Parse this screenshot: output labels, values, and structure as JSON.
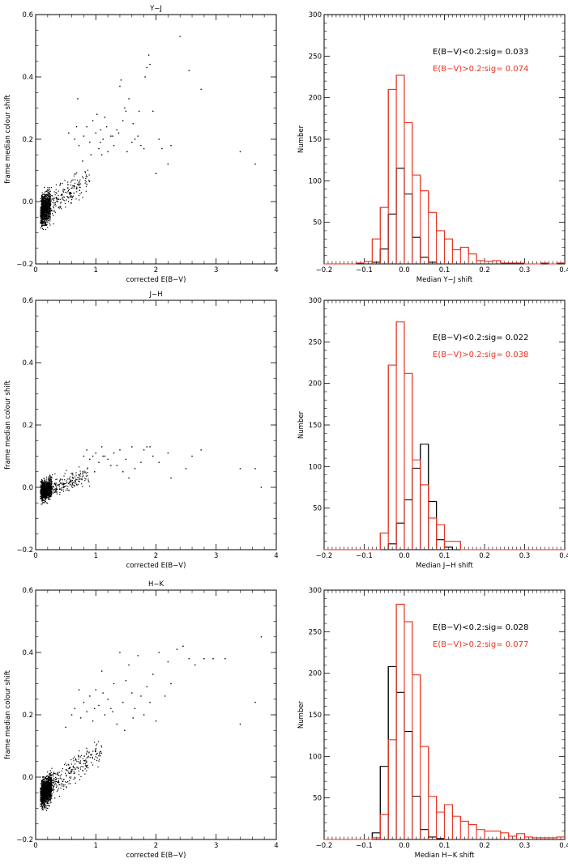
{
  "chart_data": [
    {
      "type": "scatter",
      "title": "Y−J",
      "xlabel": "corrected E(B−V)",
      "ylabel": "frame median colour shift",
      "xlim": [
        0,
        4
      ],
      "ylim": [
        -0.2,
        0.6
      ],
      "xticks": [
        0,
        1,
        2,
        3,
        4
      ],
      "yticks": [
        -0.2,
        0.0,
        0.2,
        0.4,
        0.6
      ],
      "ytick_labels": [
        "−0.2",
        "0.0",
        "0.2",
        "0.4",
        "0.6"
      ],
      "point_color": "#000000",
      "cloud": {
        "n": 1150,
        "x_min": 0.08,
        "x_max": 0.9,
        "x_peak": 0.2,
        "slope": 0.13,
        "intercept": -0.045,
        "scatter": 0.033,
        "seed": 11
      },
      "x": [
        0.55,
        0.65,
        0.7,
        0.72,
        0.8,
        0.85,
        0.9,
        0.95,
        1.0,
        1.02,
        1.05,
        1.08,
        1.1,
        1.12,
        1.15,
        1.2,
        1.25,
        1.3,
        1.35,
        1.4,
        1.42,
        1.45,
        1.48,
        1.5,
        1.55,
        1.6,
        1.65,
        1.7,
        1.72,
        1.75,
        1.8,
        1.82,
        1.85,
        1.88,
        1.9,
        1.95,
        2.0,
        2.05,
        2.1,
        2.2,
        2.25,
        2.4,
        2.55,
        2.75,
        3.4,
        3.65,
        1.18,
        1.28,
        1.38,
        1.52,
        1.62,
        0.78,
        0.68,
        1.08,
        0.92
      ],
      "y": [
        0.22,
        0.2,
        0.33,
        0.18,
        0.21,
        0.24,
        0.19,
        0.26,
        0.22,
        0.28,
        0.17,
        0.23,
        0.15,
        0.2,
        0.27,
        0.16,
        0.21,
        0.18,
        0.23,
        0.37,
        0.39,
        0.26,
        0.3,
        0.29,
        0.33,
        0.19,
        0.2,
        0.21,
        0.29,
        0.18,
        0.17,
        0.4,
        0.43,
        0.47,
        0.44,
        0.29,
        0.09,
        0.2,
        0.17,
        0.12,
        0.18,
        0.53,
        0.42,
        0.36,
        0.16,
        0.12,
        0.24,
        0.21,
        0.22,
        0.16,
        0.25,
        0.13,
        0.24,
        0.19,
        0.15
      ]
    },
    {
      "type": "histogram",
      "xlabel": "Median Y−J shift",
      "ylabel": "Number",
      "xlim": [
        -0.2,
        0.4
      ],
      "ylim": [
        0,
        300
      ],
      "xticks": [
        -0.2,
        -0.1,
        0.0,
        0.1,
        0.2,
        0.3,
        0.4
      ],
      "xtick_labels": [
        "−0.2",
        "−0.1",
        "0.0",
        "0.1",
        "0.2",
        "0.3",
        "0.4"
      ],
      "yticks": [
        50,
        100,
        150,
        200,
        250,
        300
      ],
      "bin_edges": [
        -0.2,
        -0.18,
        -0.16,
        -0.14,
        -0.12,
        -0.1,
        -0.08,
        -0.06,
        -0.04,
        -0.02,
        0.0,
        0.02,
        0.04,
        0.06,
        0.08,
        0.1,
        0.12,
        0.14,
        0.16,
        0.18,
        0.2,
        0.22,
        0.24,
        0.26,
        0.28,
        0.3,
        0.32,
        0.34,
        0.36,
        0.38,
        0.4
      ],
      "series": [
        {
          "name": "E(B−V)<0.2:sig= 0.033",
          "color": "#000000",
          "values": [
            0,
            0,
            0,
            0,
            0,
            0,
            2,
            18,
            60,
            115,
            84,
            32,
            8,
            2,
            0,
            0,
            0,
            0,
            0,
            0,
            0,
            0,
            0,
            0,
            0,
            0,
            0,
            0,
            0,
            0
          ]
        },
        {
          "name": "E(B−V)>0.2:sig= 0.074",
          "color": "#e8321f",
          "values": [
            0,
            0,
            0,
            0,
            1,
            3,
            30,
            68,
            210,
            227,
            170,
            107,
            88,
            62,
            40,
            30,
            17,
            20,
            12,
            4,
            3,
            4,
            1,
            1,
            1,
            0,
            0,
            1,
            0,
            1
          ]
        }
      ],
      "legend": [
        "E(B−V)<0.2:sig= 0.033",
        "E(B−V)>0.2:sig= 0.074"
      ]
    },
    {
      "type": "scatter",
      "title": "J−H",
      "xlabel": "corrected E(B−V)",
      "ylabel": "frame median colour shift",
      "xlim": [
        0,
        4
      ],
      "ylim": [
        -0.2,
        0.6
      ],
      "xticks": [
        0,
        1,
        2,
        3,
        4
      ],
      "yticks": [
        -0.2,
        0.0,
        0.2,
        0.4,
        0.6
      ],
      "ytick_labels": [
        "−0.2",
        "0.0",
        "0.2",
        "0.4",
        "0.6"
      ],
      "point_color": "#000000",
      "cloud": {
        "n": 1150,
        "x_min": 0.08,
        "x_max": 0.9,
        "x_peak": 0.22,
        "slope": 0.07,
        "intercept": -0.02,
        "scatter": 0.022,
        "seed": 23
      },
      "x": [
        0.8,
        0.85,
        0.9,
        0.95,
        1.0,
        1.05,
        1.1,
        1.15,
        1.2,
        1.25,
        1.3,
        1.4,
        1.45,
        1.5,
        1.55,
        1.6,
        1.65,
        1.75,
        1.8,
        1.85,
        1.9,
        1.95,
        2.05,
        2.2,
        2.25,
        2.5,
        2.6,
        2.75,
        3.4,
        3.65,
        3.75,
        1.35,
        1.12,
        0.98
      ],
      "y": [
        0.1,
        0.12,
        0.09,
        0.1,
        0.11,
        0.08,
        0.13,
        0.1,
        0.09,
        0.07,
        0.11,
        0.12,
        0.05,
        0.09,
        0.03,
        0.13,
        0.06,
        0.08,
        0.12,
        0.13,
        0.13,
        0.1,
        0.08,
        0.11,
        0.03,
        0.06,
        0.1,
        0.12,
        0.06,
        0.06,
        0.0,
        0.07,
        0.1,
        0.05
      ]
    },
    {
      "type": "histogram",
      "xlabel": "Median J−H shift",
      "ylabel": "Number",
      "xlim": [
        -0.2,
        0.4
      ],
      "ylim": [
        0,
        300
      ],
      "xticks": [
        -0.2,
        -0.1,
        0.0,
        0.1,
        0.2,
        0.3,
        0.4
      ],
      "xtick_labels": [
        "−0.2",
        "−0.1",
        "0.0",
        "0.1",
        "0.2",
        "0.3",
        "0.4"
      ],
      "yticks": [
        50,
        100,
        150,
        200,
        250,
        300
      ],
      "bin_edges": [
        -0.2,
        -0.18,
        -0.16,
        -0.14,
        -0.12,
        -0.1,
        -0.08,
        -0.06,
        -0.04,
        -0.02,
        0.0,
        0.02,
        0.04,
        0.06,
        0.08,
        0.1,
        0.12,
        0.14,
        0.16,
        0.18,
        0.2,
        0.22,
        0.24,
        0.26,
        0.28,
        0.3,
        0.32,
        0.34,
        0.36,
        0.38,
        0.4
      ],
      "series": [
        {
          "name": "E(B−V)<0.2:sig= 0.022",
          "color": "#000000",
          "values": [
            0,
            0,
            0,
            0,
            0,
            0,
            0,
            0,
            7,
            32,
            60,
            98,
            127,
            58,
            12,
            3,
            0,
            0,
            0,
            0,
            0,
            0,
            0,
            0,
            0,
            0,
            0,
            0,
            0,
            0
          ]
        },
        {
          "name": "E(B−V)>0.2:sig= 0.038",
          "color": "#e8321f",
          "values": [
            0,
            0,
            0,
            0,
            0,
            0,
            0,
            20,
            222,
            274,
            212,
            108,
            78,
            38,
            30,
            10,
            10,
            0,
            0,
            0,
            0,
            0,
            0,
            0,
            0,
            0,
            0,
            0,
            0,
            0
          ]
        }
      ],
      "legend": [
        "E(B−V)<0.2:sig= 0.022",
        "E(B−V)>0.2:sig= 0.038"
      ]
    },
    {
      "type": "scatter",
      "title": "H−K",
      "xlabel": "corrected E(B−V)",
      "ylabel": "frame median colour shift",
      "xlim": [
        0,
        4
      ],
      "ylim": [
        -0.2,
        0.6
      ],
      "xticks": [
        0,
        1,
        2,
        3,
        4
      ],
      "yticks": [
        -0.2,
        0.0,
        0.2,
        0.4,
        0.6
      ],
      "ytick_labels": [
        "−0.2",
        "0.0",
        "0.2",
        "0.4",
        "0.6"
      ],
      "point_color": "#000000",
      "cloud": {
        "n": 1500,
        "x_min": 0.08,
        "x_max": 1.1,
        "x_peak": 0.22,
        "slope": 0.15,
        "intercept": -0.07,
        "scatter": 0.03,
        "seed": 37
      },
      "x": [
        0.5,
        0.6,
        0.65,
        0.75,
        0.8,
        0.85,
        0.9,
        0.95,
        1.0,
        1.05,
        1.1,
        1.15,
        1.2,
        1.25,
        1.3,
        1.35,
        1.4,
        1.45,
        1.5,
        1.55,
        1.6,
        1.65,
        1.7,
        1.75,
        1.8,
        1.85,
        1.9,
        1.95,
        2.0,
        2.05,
        2.15,
        2.2,
        2.25,
        2.35,
        2.45,
        2.55,
        2.65,
        2.8,
        2.95,
        3.15,
        3.4,
        3.65,
        3.75,
        1.12,
        1.28,
        1.48,
        1.62,
        0.72,
        0.98
      ],
      "y": [
        0.16,
        0.2,
        0.22,
        0.19,
        0.24,
        0.21,
        0.26,
        0.18,
        0.28,
        0.23,
        0.34,
        0.2,
        0.25,
        0.22,
        0.3,
        0.17,
        0.4,
        0.24,
        0.31,
        0.36,
        0.27,
        0.22,
        0.39,
        0.26,
        0.2,
        0.29,
        0.24,
        0.33,
        0.18,
        0.4,
        0.26,
        0.37,
        0.3,
        0.41,
        0.42,
        0.38,
        0.36,
        0.38,
        0.38,
        0.38,
        0.17,
        0.24,
        0.45,
        0.27,
        0.21,
        0.15,
        0.19,
        0.28,
        0.22
      ]
    },
    {
      "type": "histogram",
      "xlabel": "Median H−K shift",
      "ylabel": "Number",
      "xlim": [
        -0.2,
        0.4
      ],
      "ylim": [
        0,
        300
      ],
      "xticks": [
        -0.2,
        -0.1,
        0.0,
        0.1,
        0.2,
        0.3,
        0.4
      ],
      "xtick_labels": [
        "−0.2",
        "−0.1",
        "0.0",
        "0.1",
        "0.2",
        "0.3",
        "0.4"
      ],
      "yticks": [
        50,
        100,
        150,
        200,
        250,
        300
      ],
      "bin_edges": [
        -0.2,
        -0.18,
        -0.16,
        -0.14,
        -0.12,
        -0.1,
        -0.08,
        -0.06,
        -0.04,
        -0.02,
        0.0,
        0.02,
        0.04,
        0.06,
        0.08,
        0.1,
        0.12,
        0.14,
        0.16,
        0.18,
        0.2,
        0.22,
        0.24,
        0.26,
        0.28,
        0.3,
        0.32,
        0.34,
        0.36,
        0.38,
        0.4
      ],
      "series": [
        {
          "name": "E(B−V)<0.2:sig= 0.028",
          "color": "#000000",
          "values": [
            0,
            0,
            0,
            0,
            0,
            0,
            8,
            88,
            208,
            177,
            130,
            52,
            12,
            3,
            1,
            0,
            0,
            0,
            0,
            0,
            0,
            0,
            0,
            0,
            0,
            0,
            0,
            0,
            0,
            0
          ]
        },
        {
          "name": "E(B−V)>0.2:sig= 0.077",
          "color": "#e8321f",
          "values": [
            0,
            0,
            0,
            0,
            0,
            0,
            2,
            30,
            120,
            283,
            262,
            198,
            112,
            52,
            33,
            42,
            28,
            22,
            18,
            12,
            10,
            10,
            8,
            4,
            7,
            3,
            2,
            2,
            2,
            3
          ]
        }
      ],
      "legend": [
        "E(B−V)<0.2:sig= 0.028",
        "E(B−V)>0.2:sig= 0.077"
      ]
    }
  ]
}
